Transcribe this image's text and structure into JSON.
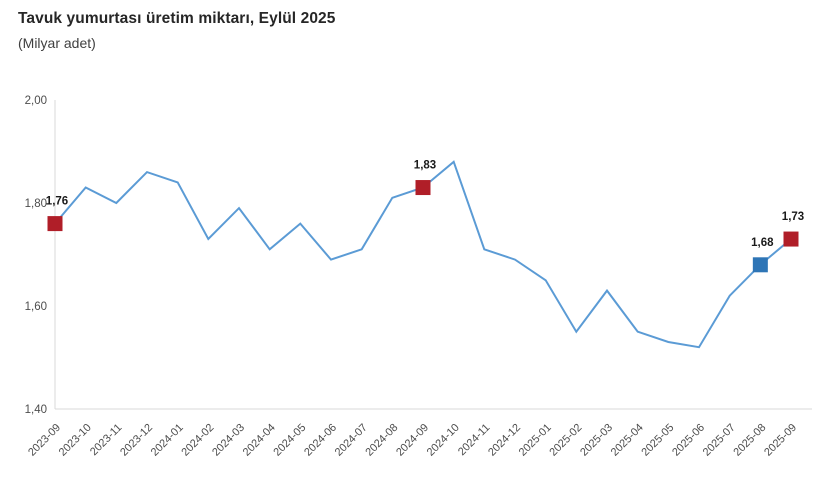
{
  "header": {
    "title": "Tavuk yumurtası üretim miktarı, Eylül 2025",
    "subtitle": "(Milyar adet)"
  },
  "chart_data": {
    "type": "line",
    "title": "Tavuk yumurtası üretim miktarı, Eylül 2025",
    "subtitle": "(Milyar adet)",
    "x": [
      "2023-09",
      "2023-10",
      "2023-11",
      "2023-12",
      "2024-01",
      "2024-02",
      "2024-03",
      "2024-04",
      "2024-05",
      "2024-06",
      "2024-07",
      "2024-08",
      "2024-09",
      "2024-10",
      "2024-11",
      "2024-12",
      "2025-01",
      "2025-02",
      "2025-03",
      "2025-04",
      "2025-05",
      "2025-06",
      "2025-07",
      "2025-08",
      "2025-09"
    ],
    "series": [
      {
        "name": "Tavuk yumurtası üretim miktarı (Milyar adet)",
        "values": [
          1.76,
          1.83,
          1.8,
          1.86,
          1.84,
          1.73,
          1.79,
          1.71,
          1.76,
          1.69,
          1.71,
          1.81,
          1.83,
          1.88,
          1.71,
          1.69,
          1.65,
          1.55,
          1.63,
          1.55,
          1.53,
          1.52,
          1.62,
          1.68,
          1.73
        ]
      }
    ],
    "ylim": [
      1.4,
      2.0
    ],
    "yticks": [
      2.0,
      1.8,
      1.6,
      1.4
    ],
    "ytick_labels": [
      "2,00",
      "1,80",
      "1,60",
      "1,40"
    ],
    "xlabel": "",
    "ylabel": "",
    "grid": false,
    "legend_position": "none",
    "colors": {
      "line": "#5b9bd5",
      "axis": "#d9d9d9",
      "tick_label": "#4d4d4d",
      "data_label": "#1a1a1a",
      "highlight_red": "#b01e28",
      "highlight_blue": "#2e75b6"
    },
    "highlights": [
      {
        "x": "2023-09",
        "index": 0,
        "label": "1,76",
        "color": "#b01e28"
      },
      {
        "x": "2024-09",
        "index": 12,
        "label": "1,83",
        "color": "#b01e28"
      },
      {
        "x": "2025-08",
        "index": 23,
        "label": "1,68",
        "color": "#2e75b6"
      },
      {
        "x": "2025-09",
        "index": 24,
        "label": "1,73",
        "color": "#b01e28"
      }
    ]
  }
}
